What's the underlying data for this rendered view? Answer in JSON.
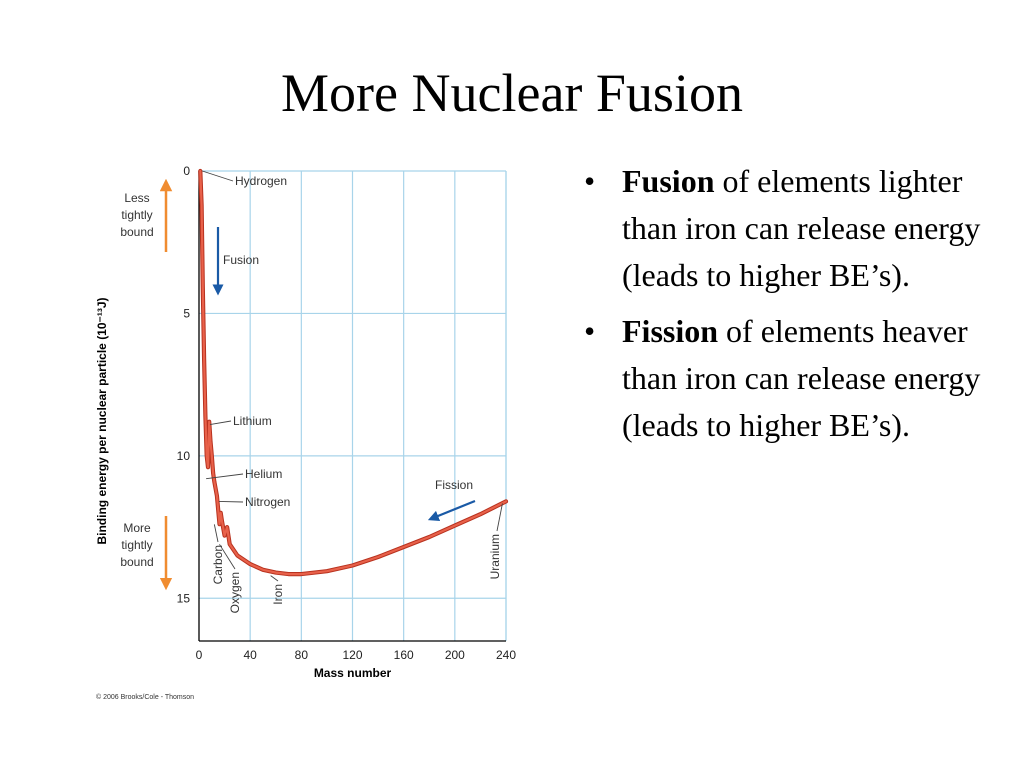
{
  "slide": {
    "title": "More Nuclear Fusion",
    "bullets": [
      {
        "marker": "•",
        "bold": "Fusion",
        "text": " of elements lighter than iron can release energy (leads to higher BE’s)."
      },
      {
        "marker": "•",
        "bold": "Fission",
        "text": " of elements heaver than iron can release energy (leads to higher BE’s)."
      }
    ]
  },
  "chart_data": {
    "type": "line",
    "xlabel": "Mass number",
    "ylabel": "Binding energy per nuclear particle (10⁻¹³J)",
    "xlim": [
      0,
      240
    ],
    "ylim": [
      0,
      16.5
    ],
    "y_inverted": true,
    "x_ticks": [
      0,
      40,
      80,
      120,
      160,
      200,
      240
    ],
    "y_ticks": [
      0,
      5,
      10,
      15
    ],
    "grid": true,
    "series": [
      {
        "color": "#e8614a",
        "points": [
          [
            1,
            0
          ],
          [
            2,
            1.2
          ],
          [
            3,
            4.1
          ],
          [
            4,
            6.6
          ],
          [
            5,
            8.6
          ],
          [
            6,
            10.0
          ],
          [
            7,
            10.4
          ],
          [
            8,
            8.8
          ],
          [
            9,
            9.5
          ],
          [
            10,
            10.0
          ],
          [
            11,
            10.6
          ],
          [
            12,
            10.9
          ],
          [
            14,
            11.4
          ],
          [
            16,
            12.4
          ],
          [
            17,
            12.0
          ],
          [
            18,
            12.3
          ],
          [
            20,
            12.8
          ],
          [
            22,
            12.5
          ],
          [
            24,
            13.1
          ],
          [
            30,
            13.5
          ],
          [
            40,
            13.8
          ],
          [
            50,
            14.0
          ],
          [
            60,
            14.1
          ],
          [
            70,
            14.15
          ],
          [
            80,
            14.15
          ],
          [
            100,
            14.05
          ],
          [
            120,
            13.85
          ],
          [
            140,
            13.55
          ],
          [
            160,
            13.2
          ],
          [
            180,
            12.85
          ],
          [
            200,
            12.45
          ],
          [
            220,
            12.05
          ],
          [
            240,
            11.6
          ]
        ]
      }
    ],
    "annotations": [
      {
        "label": "Hydrogen",
        "x": 1,
        "y": 0
      },
      {
        "label": "Lithium",
        "x": 7,
        "y": 8.9
      },
      {
        "label": "Helium",
        "x": 4,
        "y": 10.8
      },
      {
        "label": "Nitrogen",
        "x": 14,
        "y": 11.6
      },
      {
        "label": "Carbon",
        "x": 12,
        "y": 12.3
      },
      {
        "label": "Oxygen",
        "x": 16,
        "y": 13.0
      },
      {
        "label": "Iron",
        "x": 56,
        "y": 14.1
      },
      {
        "label": "Uranium",
        "x": 238,
        "y": 11.6
      },
      {
        "label": "Fusion",
        "x": 15,
        "y": 3.3
      },
      {
        "label": "Fission",
        "x": 195,
        "y": 11.3
      }
    ],
    "side_labels": {
      "top": "Less tightly bound",
      "bottom": "More tightly bound"
    },
    "credit": "© 2006 Brooks/Cole - Thomson",
    "colors": {
      "grid": "#a8d4ea",
      "axis": "#000000",
      "curve": "#e8614a",
      "curve_dark": "#b8321f",
      "side_arrow": "#f08c30",
      "process_arrow": "#1a5aa6"
    }
  }
}
